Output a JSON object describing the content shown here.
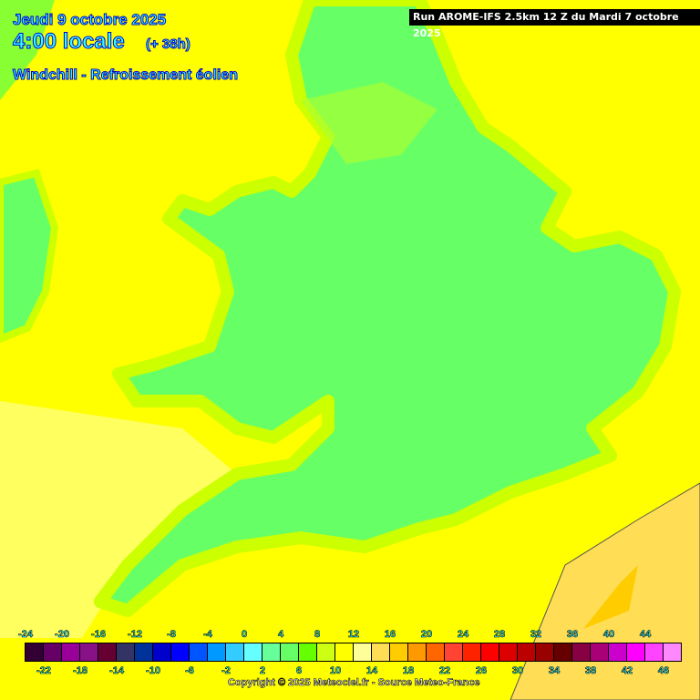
{
  "header": {
    "date": "Jeudi 9 octobre 2025",
    "time": "4:00 locale",
    "lead": "(+ 38h)",
    "parameter": "Windchill - Refroissement éolien",
    "run": "Run AROME-IFS 2.5km 12 Z du Mardi 7 octobre 2025"
  },
  "map_colors": {
    "sea": "#ffff00",
    "sea_pale": "#ffff99",
    "land": "#66ff66",
    "land_edge": "#ccff00",
    "france": "#ffdd55",
    "coast": "#555555"
  },
  "legend": {
    "top_labels": [
      "-24",
      "-20",
      "-16",
      "-12",
      "-8",
      "-4",
      "0",
      "4",
      "8",
      "12",
      "16",
      "20",
      "24",
      "28",
      "32",
      "36",
      "40",
      "44"
    ],
    "bottom_labels": [
      "-22",
      "-18",
      "-14",
      "-10",
      "-6",
      "-2",
      "2",
      "6",
      "10",
      "14",
      "18",
      "22",
      "26",
      "30",
      "34",
      "38",
      "42",
      "46"
    ],
    "colors": [
      "#330033",
      "#660066",
      "#990099",
      "#881188",
      "#660033",
      "#333366",
      "#003399",
      "#0000cc",
      "#0000ff",
      "#0055ff",
      "#0099ff",
      "#33ccff",
      "#66ffff",
      "#66ff99",
      "#66ff66",
      "#66ff00",
      "#ccff11",
      "#ffff00",
      "#ffff99",
      "#ffdd55",
      "#ffcc00",
      "#ff9900",
      "#ff6600",
      "#ff4433",
      "#ff2200",
      "#ff0000",
      "#dd0000",
      "#bb0000",
      "#990000",
      "#660000",
      "#880044",
      "#aa0077",
      "#cc00cc",
      "#ff00ff",
      "#ff44ff",
      "#ff88ff"
    ]
  },
  "copyright": "Copyright © 2025 Meteociel.fr - Source Meteo-France"
}
